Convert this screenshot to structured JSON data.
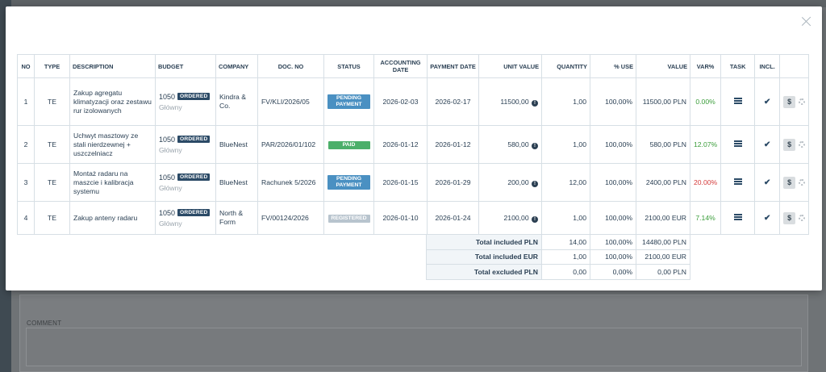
{
  "comment_label": "COMMENT",
  "columns": {
    "no": "NO",
    "type": "TYPE",
    "description": "DESCRIPTION",
    "budget": "BUDGET",
    "company": "COMPANY",
    "doc_no": "DOC. NO",
    "status": "STATUS",
    "accounting_date": "ACCOUNTING DATE",
    "payment_date": "PAYMENT DATE",
    "unit_value": "UNIT VALUE",
    "quantity": "QUANTITY",
    "pct_use": "% USE",
    "value": "VALUE",
    "var_pct": "VAR%",
    "task": "TASK",
    "incl": "INCL."
  },
  "rows": [
    {
      "no": "1",
      "type": "TE",
      "description": "Zakup agregatu klimatyzacji oraz zestawu rur izolowanych",
      "budget_num": "1050",
      "budget_badge": "ORDERED",
      "budget_sub": "Główny",
      "company": "Kindra & Co.",
      "doc_no": "FV/KLI/2026/05",
      "status": "PENDING PAYMENT",
      "status_kind": "pending",
      "accounting_date": "2026-02-03",
      "payment_date": "2026-02-17",
      "unit_value": "11500,00",
      "quantity": "1,00",
      "pct_use": "100,00%",
      "value": "11500,00 PLN",
      "var_pct": "0.00%",
      "var_sign": "pos",
      "dollar": "$"
    },
    {
      "no": "2",
      "type": "TE",
      "description": "Uchwyt masztowy ze stali nierdzewnej + uszczelniacz",
      "budget_num": "1050",
      "budget_badge": "ORDERED",
      "budget_sub": "Główny",
      "company": "BlueNest",
      "doc_no": "PAR/2026/01/102",
      "status": "PAID",
      "status_kind": "paid",
      "accounting_date": "2026-01-12",
      "payment_date": "2026-01-12",
      "unit_value": "580,00",
      "quantity": "1,00",
      "pct_use": "100,00%",
      "value": "580,00 PLN",
      "var_pct": "12.07%",
      "var_sign": "pos",
      "dollar": "$"
    },
    {
      "no": "3",
      "type": "TE",
      "description": "Montaż radaru na maszcie i kalibracja systemu",
      "budget_num": "1050",
      "budget_badge": "ORDERED",
      "budget_sub": "Główny",
      "company": "BlueNest",
      "doc_no": "Rachunek 5/2026",
      "status": "PENDING PAYMENT",
      "status_kind": "pending",
      "accounting_date": "2026-01-15",
      "payment_date": "2026-01-29",
      "unit_value": "200,00",
      "quantity": "12,00",
      "pct_use": "100,00%",
      "value": "2400,00 PLN",
      "var_pct": "20.00%",
      "var_sign": "neg",
      "dollar": "$"
    },
    {
      "no": "4",
      "type": "TE",
      "description": "Zakup anteny radaru",
      "budget_num": "1050",
      "budget_badge": "ORDERED",
      "budget_sub": "Główny",
      "company": "North & Form",
      "doc_no": "FV/00124/2026",
      "status": "REGISTERED",
      "status_kind": "registered",
      "accounting_date": "2026-01-10",
      "payment_date": "2026-01-24",
      "unit_value": "2100,00",
      "quantity": "1,00",
      "pct_use": "100,00%",
      "value": "2100,00 EUR",
      "var_pct": "7.14%",
      "var_sign": "pos",
      "dollar": "$"
    }
  ],
  "totals": [
    {
      "label": "Total included PLN",
      "quantity": "14,00",
      "pct_use": "100,00%",
      "value": "14480,00 PLN"
    },
    {
      "label": "Total included EUR",
      "quantity": "1,00",
      "pct_use": "100,00%",
      "value": "2100,00 EUR"
    },
    {
      "label": "Total excluded PLN",
      "quantity": "0,00",
      "pct_use": "0,00%",
      "value": "0,00 PLN"
    }
  ],
  "colors": {
    "pending": "#4a90c2",
    "paid": "#4caf6a",
    "registered": "#b8c4ce",
    "ordered_badge": "#2b4a66",
    "var_positive": "#3a9d3a",
    "var_negative": "#d43a3a"
  }
}
